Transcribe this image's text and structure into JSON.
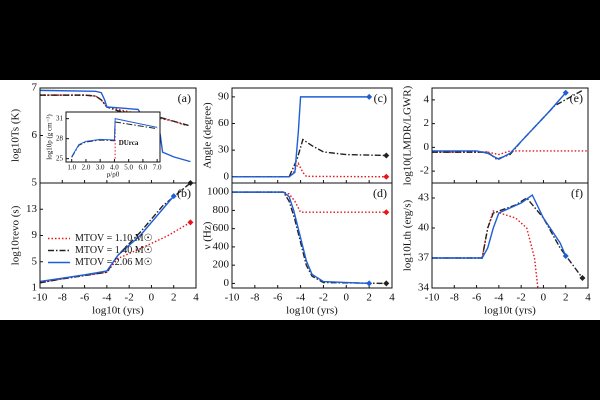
{
  "chart_data": [
    {
      "type": "line",
      "panel_label": "(a)",
      "ylabel": "log10Ts (K)",
      "xlim": [
        -10,
        4
      ],
      "ylim": [
        5,
        7
      ],
      "xticks": [
        -10,
        -8,
        -6,
        -4,
        -2,
        0,
        2,
        4
      ],
      "yticks": [
        5,
        6,
        7
      ],
      "series": [
        {
          "color": "#e8131b",
          "style": "dotted",
          "x": [
            -10,
            -6,
            -5,
            -4.5,
            -4,
            -3,
            -2,
            0,
            2,
            3
          ],
          "values": [
            6.85,
            6.85,
            6.83,
            6.75,
            6.6,
            6.55,
            6.5,
            6.4,
            6.3,
            6.22
          ]
        },
        {
          "color": "#222222",
          "style": "dashdot",
          "x": [
            -10,
            -6,
            -5,
            -4.5,
            -4,
            -3,
            -1,
            0.5,
            2,
            3.5
          ],
          "values": [
            6.85,
            6.85,
            6.83,
            6.75,
            6.6,
            6.52,
            6.45,
            6.4,
            6.3,
            6.2
          ]
        },
        {
          "color": "#1f5fd6",
          "style": "solid",
          "x": [
            -10,
            -5,
            -4.5,
            -4.2,
            -4,
            -1.2,
            -0.8,
            0.5,
            0.8,
            1,
            2,
            3.5
          ],
          "values": [
            6.95,
            6.93,
            6.9,
            6.75,
            6.6,
            6.55,
            6.4,
            6.35,
            6.0,
            5.65,
            5.55,
            5.45
          ]
        }
      ]
    },
    {
      "type": "line",
      "panel_label": "(b)",
      "ylabel": "log10τevo (s)",
      "xlabel": "log10t (yrs)",
      "legend": "center left",
      "xlim": [
        -10,
        4
      ],
      "ylim": [
        1,
        17
      ],
      "xticks": [
        -10,
        -8,
        -6,
        -4,
        -2,
        0,
        2,
        4
      ],
      "yticks": [
        1,
        5,
        9,
        13
      ],
      "series": [
        {
          "name": "MTOV = 1.10 M☉",
          "color": "#e8131b",
          "style": "dotted",
          "end_marker": true,
          "x": [
            -10,
            -8,
            -6,
            -4,
            -3,
            -1,
            1.5,
            3.5
          ],
          "values": [
            1.8,
            2.4,
            2.9,
            3.4,
            5.5,
            7,
            9,
            11
          ]
        },
        {
          "name": "MTOV = 1.40 M☉",
          "color": "#222222",
          "style": "dashdot",
          "end_marker": true,
          "x": [
            -10,
            -8,
            -6,
            -4,
            -3,
            -1,
            1,
            3.5
          ],
          "values": [
            1.8,
            2.4,
            2.9,
            3.4,
            6,
            9.5,
            13.5,
            17
          ]
        },
        {
          "name": "MTOV = 2.06 M☉",
          "color": "#1f5fd6",
          "style": "solid",
          "end_marker": true,
          "x": [
            -10,
            -8,
            -6,
            -5,
            -4,
            -3,
            -1,
            1,
            2
          ],
          "values": [
            2,
            2.5,
            3,
            3.3,
            3.6,
            6,
            9,
            13,
            15
          ]
        }
      ]
    },
    {
      "type": "line",
      "panel_label": "(c)",
      "ylabel": "Angle (degree)",
      "xlim": [
        -10,
        4
      ],
      "ylim": [
        -7,
        100
      ],
      "xticks": [
        -10,
        -8,
        -6,
        -4,
        -2,
        0,
        2,
        4
      ],
      "yticks": [
        0,
        30,
        60,
        90
      ],
      "series": [
        {
          "color": "#e8131b",
          "style": "dotted",
          "end_marker": true,
          "x": [
            -10,
            -5,
            -4.6,
            -4.2,
            -3.8,
            -3.5,
            3.5
          ],
          "values": [
            0,
            0,
            5,
            15,
            5,
            0.5,
            0
          ]
        },
        {
          "color": "#222222",
          "style": "dashdot",
          "end_marker": true,
          "x": [
            -10,
            -5,
            -4.3,
            -3.8,
            -3,
            -2,
            0,
            3.5
          ],
          "values": [
            0,
            0,
            20,
            42,
            35,
            28,
            25,
            24
          ]
        },
        {
          "color": "#1f5fd6",
          "style": "solid",
          "end_marker": true,
          "x": [
            -10,
            -5,
            -4.5,
            -4.2,
            -4,
            2
          ],
          "values": [
            0,
            0,
            5,
            50,
            90,
            90
          ]
        }
      ]
    },
    {
      "type": "line",
      "panel_label": "(d)",
      "ylabel": "ν (Hz)",
      "xlabel": "log10t (yrs)",
      "xlim": [
        -10,
        4
      ],
      "ylim": [
        -50,
        1100
      ],
      "xticks": [
        -10,
        -8,
        -6,
        -4,
        -2,
        0,
        2,
        4
      ],
      "yticks": [
        0,
        200,
        400,
        600,
        800,
        1000
      ],
      "series": [
        {
          "color": "#e8131b",
          "style": "dotted",
          "end_marker": true,
          "x": [
            -10,
            -5.5,
            -5,
            -4.5,
            -4,
            3.5
          ],
          "values": [
            1000,
            1000,
            980,
            900,
            780,
            780
          ]
        },
        {
          "color": "#222222",
          "style": "dashdot",
          "end_marker": true,
          "x": [
            -10,
            -5.5,
            -5,
            -4.5,
            -4,
            -3.5,
            -3,
            -2,
            3.5
          ],
          "values": [
            1000,
            1000,
            900,
            700,
            450,
            200,
            80,
            10,
            0
          ]
        },
        {
          "color": "#1f5fd6",
          "style": "solid",
          "end_marker": true,
          "x": [
            -10,
            -5.5,
            -5,
            -4.6,
            -4,
            -3.5,
            -3,
            -2,
            2
          ],
          "values": [
            1000,
            1000,
            950,
            800,
            500,
            250,
            100,
            20,
            0
          ]
        }
      ]
    },
    {
      "type": "line",
      "panel_label": "(e)",
      "ylabel": "log10(LMDR/LGWR)",
      "xlim": [
        -10,
        4
      ],
      "ylim": [
        -3,
        5
      ],
      "xticks": [
        -10,
        -8,
        -6,
        -4,
        -2,
        0,
        2,
        4
      ],
      "yticks": [
        -2,
        0,
        2,
        4
      ],
      "series": [
        {
          "color": "#e8131b",
          "style": "dotted",
          "x": [
            -10,
            -5,
            -4,
            -3,
            -1.5,
            4
          ],
          "values": [
            -0.4,
            -0.4,
            -0.6,
            -0.3,
            -0.3,
            -0.3
          ]
        },
        {
          "color": "#222222",
          "style": "dashdot",
          "x": [
            -10,
            -5,
            -4.2,
            -3,
            -2,
            -0.5,
            1,
            3.5
          ],
          "values": [
            -0.4,
            -0.4,
            -1,
            -0.6,
            0.5,
            2,
            3.5,
            4.8
          ]
        },
        {
          "color": "#1f5fd6",
          "style": "solid",
          "end_marker": true,
          "x": [
            -10,
            -6,
            -5,
            -4,
            -3,
            -2,
            -1,
            0.5,
            2
          ],
          "values": [
            -0.3,
            -0.3,
            -0.5,
            -1,
            -0.5,
            0.5,
            1.5,
            3,
            4.6
          ]
        }
      ]
    },
    {
      "type": "line",
      "panel_label": "(f)",
      "ylabel": "log10Lth (erg/s)",
      "xlabel": "log10t (yrs)",
      "xlim": [
        -10,
        4
      ],
      "ylim": [
        34,
        44.5
      ],
      "xticks": [
        -10,
        -8,
        -6,
        -4,
        -2,
        0,
        2,
        4
      ],
      "yticks": [
        34,
        37,
        40,
        43
      ],
      "series": [
        {
          "color": "#e8131b",
          "style": "dotted",
          "x": [
            -10,
            -5.5,
            -5,
            -4.5,
            -2.5,
            -1.5,
            -0.8,
            -0.5
          ],
          "values": [
            37,
            37,
            40,
            41.7,
            41,
            40,
            37,
            34
          ]
        },
        {
          "color": "#222222",
          "style": "dashdot",
          "end_marker": true,
          "x": [
            -10,
            -5.5,
            -5,
            -4.5,
            -2.5,
            -1.5,
            0,
            1.5,
            3.5
          ],
          "values": [
            37,
            37,
            40,
            41.5,
            42.3,
            43,
            41,
            38,
            35
          ]
        },
        {
          "color": "#1f5fd6",
          "style": "solid",
          "end_marker": true,
          "x": [
            -10,
            -5.5,
            -5,
            -4.5,
            -4,
            -2,
            -1,
            0,
            1.5,
            2
          ],
          "values": [
            37,
            37,
            38,
            40,
            41.5,
            42.5,
            43.3,
            41,
            38.5,
            37.2
          ]
        }
      ]
    },
    {
      "type": "line",
      "ylabel": "log10ρ (g cm⁻³)",
      "xlabel": "ρ/ρ0",
      "annotation": "DUrca",
      "xlim": [
        0.6,
        7.2
      ],
      "ylim": [
        24.5,
        32
      ],
      "xticks": [
        {
          "value": 1,
          "label": "1.0"
        },
        {
          "value": 2,
          "label": "2.0"
        },
        {
          "value": 3,
          "label": "3.0"
        },
        {
          "value": 4,
          "label": "4.0"
        },
        {
          "value": 5,
          "label": "5.0"
        },
        {
          "value": 6,
          "label": "6.0"
        },
        {
          "value": 7,
          "label": "7.0"
        }
      ],
      "yticks": [
        25,
        28,
        31
      ],
      "series": [
        {
          "color": "#e8131b",
          "style": "dotted",
          "x": [
            4.05,
            4.05
          ],
          "values": [
            25,
            30.5
          ]
        },
        {
          "color": "#222222",
          "style": "dashdot",
          "x": [
            1,
            1.5,
            2,
            3,
            4,
            4.05,
            7
          ],
          "values": [
            25.2,
            27,
            27.5,
            27.8,
            27.7,
            30.5,
            29.5
          ]
        },
        {
          "color": "#1f5fd6",
          "style": "solid",
          "x": [
            1,
            1.5,
            2,
            3,
            4,
            4.05,
            7
          ],
          "values": [
            25.3,
            27.1,
            27.6,
            27.9,
            27.8,
            31,
            29.7
          ]
        }
      ]
    }
  ]
}
